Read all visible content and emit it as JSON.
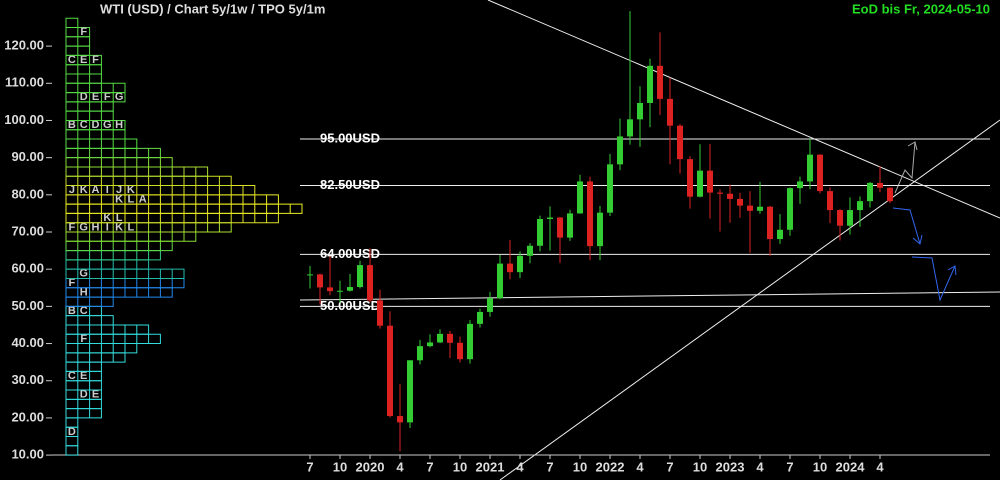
{
  "chart_data": {
    "type": "candlestick",
    "title": "WTI (USD) /  Chart 5y/1w / TPO 5y/1m",
    "subtitle": "EoD bis Fr, 2024-05-10",
    "up_color": "#33cc33",
    "down_color": "#dd2222",
    "x": [
      "2019-07",
      "2019-08",
      "2019-09",
      "2019-10",
      "2019-11",
      "2019-12",
      "2020-01",
      "2020-02",
      "2020-03",
      "2020-04",
      "2020-05",
      "2020-06",
      "2020-07",
      "2020-08",
      "2020-09",
      "2020-10",
      "2020-11",
      "2020-12",
      "2021-01",
      "2021-02",
      "2021-03",
      "2021-04",
      "2021-05",
      "2021-06",
      "2021-07",
      "2021-08",
      "2021-09",
      "2021-10",
      "2021-11",
      "2021-12",
      "2022-01",
      "2022-02",
      "2022-03",
      "2022-04",
      "2022-05",
      "2022-06",
      "2022-07",
      "2022-08",
      "2022-09",
      "2022-10",
      "2022-11",
      "2022-12",
      "2023-01",
      "2023-02",
      "2023-03",
      "2023-04",
      "2023-05",
      "2023-06",
      "2023-07",
      "2023-08",
      "2023-09",
      "2023-10",
      "2023-11",
      "2023-12",
      "2024-01",
      "2024-02",
      "2024-03",
      "2024-04",
      "2024-05"
    ],
    "open": [
      58.5,
      58.6,
      55.1,
      54.1,
      54.2,
      55.2,
      61.1,
      51.6,
      44.8,
      20.5,
      18.8,
      35.5,
      39.3,
      40.3,
      42.6,
      40.2,
      35.8,
      45.3,
      48.5,
      52.2,
      61.5,
      59.2,
      63.6,
      66.3,
      73.5,
      73.9,
      68.5,
      75.0,
      83.6,
      66.2,
      75.2,
      88.2,
      95.7,
      100.3,
      104.7,
      114.7,
      105.8,
      98.6,
      89.6,
      79.5,
      86.5,
      80.6,
      80.3,
      78.9,
      77.1,
      75.7,
      76.8,
      68.1,
      70.6,
      81.8,
      83.6,
      90.8,
      81.0,
      75.9,
      71.7,
      75.9,
      78.3,
      83.2,
      81.9
    ],
    "high": [
      60.9,
      58.8,
      63.4,
      56.9,
      58.7,
      62.3,
      65.6,
      54.5,
      48.7,
      29.1,
      35.5,
      41.0,
      42.5,
      43.8,
      43.4,
      41.9,
      46.3,
      49.4,
      53.9,
      63.8,
      67.9,
      64.8,
      67.0,
      74.4,
      76.9,
      74.0,
      76.0,
      85.4,
      84.9,
      77.0,
      91.0,
      100.5,
      129.4,
      109.2,
      116.6,
      123.7,
      111.5,
      99.0,
      90.4,
      93.6,
      93.7,
      81.5,
      82.7,
      80.6,
      81.0,
      83.5,
      77.0,
      74.8,
      82.0,
      84.9,
      95.0,
      90.9,
      82.0,
      76.2,
      79.3,
      79.6,
      83.5,
      87.7,
      82.0
    ],
    "low": [
      54.8,
      50.5,
      53.0,
      50.9,
      54.0,
      54.8,
      51.1,
      44.0,
      20.1,
      11.0,
      17.3,
      34.4,
      39.0,
      40.1,
      36.1,
      34.9,
      34.6,
      44.3,
      47.2,
      51.9,
      57.3,
      57.6,
      61.6,
      64.8,
      65.0,
      61.7,
      67.6,
      74.9,
      62.4,
      62.4,
      74.3,
      86.6,
      93.5,
      92.9,
      98.2,
      101.5,
      88.2,
      85.7,
      76.3,
      79.3,
      73.6,
      70.1,
      72.5,
      73.8,
      64.4,
      74.9,
      63.6,
      66.8,
      69.0,
      77.6,
      81.5,
      80.4,
      72.4,
      67.7,
      69.3,
      71.4,
      76.6,
      80.7,
      77.8
    ],
    "close": [
      58.6,
      55.1,
      54.1,
      54.2,
      55.2,
      61.1,
      51.6,
      44.8,
      20.5,
      18.8,
      35.5,
      39.3,
      40.3,
      42.6,
      40.2,
      35.8,
      45.3,
      48.5,
      52.2,
      61.5,
      59.2,
      63.6,
      66.3,
      73.5,
      73.9,
      68.5,
      75.0,
      83.6,
      66.2,
      75.2,
      88.2,
      95.7,
      100.3,
      104.7,
      114.7,
      105.8,
      98.6,
      89.6,
      79.5,
      86.5,
      80.6,
      80.3,
      78.9,
      77.1,
      75.7,
      76.8,
      68.1,
      70.6,
      81.8,
      83.6,
      90.8,
      81.0,
      75.9,
      71.7,
      75.9,
      78.3,
      83.2,
      81.9,
      78.3
    ],
    "xlim": [
      "2019-06",
      "2025-03"
    ],
    "xticks": [
      {
        "value": "2019-07",
        "label": "7"
      },
      {
        "value": "2019-10",
        "label": "10"
      },
      {
        "value": "2020-01",
        "label": "2020"
      },
      {
        "value": "2020-04",
        "label": "4"
      },
      {
        "value": "2020-07",
        "label": "7"
      },
      {
        "value": "2020-10",
        "label": "10"
      },
      {
        "value": "2021-01",
        "label": "2021"
      },
      {
        "value": "2021-04",
        "label": "4"
      },
      {
        "value": "2021-07",
        "label": "7"
      },
      {
        "value": "2021-10",
        "label": "10"
      },
      {
        "value": "2022-01",
        "label": "2022"
      },
      {
        "value": "2022-04",
        "label": "4"
      },
      {
        "value": "2022-07",
        "label": "7"
      },
      {
        "value": "2022-10",
        "label": "10"
      },
      {
        "value": "2023-01",
        "label": "2023"
      },
      {
        "value": "2023-04",
        "label": "4"
      },
      {
        "value": "2023-07",
        "label": "7"
      },
      {
        "value": "2023-10",
        "label": "10"
      },
      {
        "value": "2024-01",
        "label": "2024"
      },
      {
        "value": "2024-04",
        "label": "4"
      }
    ],
    "ylim": [
      3.3,
      132.4
    ],
    "yticks": [
      {
        "value": 10,
        "label": "10.00"
      },
      {
        "value": 20,
        "label": "20.00"
      },
      {
        "value": 30,
        "label": "30.00"
      },
      {
        "value": 40,
        "label": "40.00"
      },
      {
        "value": 50,
        "label": "50.00"
      },
      {
        "value": 60,
        "label": "60.00"
      },
      {
        "value": 70,
        "label": "70.00"
      },
      {
        "value": 80,
        "label": "80.00"
      },
      {
        "value": 90,
        "label": "90.00"
      },
      {
        "value": 100,
        "label": "100.00"
      },
      {
        "value": 110,
        "label": "110.00"
      },
      {
        "value": 120,
        "label": "120.00"
      }
    ],
    "levels": [
      {
        "value": 95,
        "label": "95.00USD"
      },
      {
        "value": 82.5,
        "label": "82.50USD"
      },
      {
        "value": 64,
        "label": "64.00USD"
      },
      {
        "value": 50,
        "label": "50.00USD"
      }
    ],
    "tpo": {
      "bin": 2.5,
      "rows": [
        {
          "price": 10,
          "count": 1,
          "color": "#33dddd"
        },
        {
          "price": 12.5,
          "count": 1,
          "color": "#33dddd"
        },
        {
          "price": 15,
          "count": 1,
          "color": "#33dddd",
          "letters": [
            "D"
          ]
        },
        {
          "price": 17.5,
          "count": 1,
          "color": "#33dddd"
        },
        {
          "price": 20,
          "count": 3,
          "color": "#33dddd"
        },
        {
          "price": 22.5,
          "count": 3,
          "color": "#33dddd"
        },
        {
          "price": 25,
          "count": 3,
          "color": "#33dddd",
          "letters": [
            null,
            "D",
            "E"
          ]
        },
        {
          "price": 27.5,
          "count": 3,
          "color": "#33dddd"
        },
        {
          "price": 30,
          "count": 3,
          "color": "#33dddd",
          "letters": [
            "C",
            "E"
          ]
        },
        {
          "price": 32.5,
          "count": 3,
          "color": "#33dddd"
        },
        {
          "price": 35,
          "count": 5,
          "color": "#33dddd"
        },
        {
          "price": 37.5,
          "count": 6,
          "color": "#33dddd"
        },
        {
          "price": 40,
          "count": 8,
          "color": "#33dddd",
          "letters": [
            null,
            "F"
          ]
        },
        {
          "price": 42.5,
          "count": 7,
          "color": "#33dddd"
        },
        {
          "price": 45,
          "count": 4,
          "color": "#33dddd"
        },
        {
          "price": 47.5,
          "count": 3,
          "color": "#33dddd",
          "letters": [
            "B",
            "C"
          ]
        },
        {
          "price": 50,
          "count": 4,
          "color": "#2288ee"
        },
        {
          "price": 52.5,
          "count": 9,
          "color": "#2288ee",
          "letters": [
            null,
            "H"
          ]
        },
        {
          "price": 55,
          "count": 10,
          "color": "#2288ee",
          "letters": [
            "F"
          ]
        },
        {
          "price": 57.5,
          "count": 10,
          "color": "#22bbaa",
          "letters": [
            null,
            "G"
          ]
        },
        {
          "price": 60,
          "count": 7,
          "color": "#22bbaa"
        },
        {
          "price": 62.5,
          "count": 8,
          "color": "#33cc88"
        },
        {
          "price": 65,
          "count": 9,
          "color": "#66dd44"
        },
        {
          "price": 67.5,
          "count": 11,
          "color": "#88dd33"
        },
        {
          "price": 70,
          "count": 14,
          "color": "#aae033",
          "letters": [
            "F",
            "G",
            "H",
            "I",
            "K",
            "L"
          ]
        },
        {
          "price": 72.5,
          "count": 18,
          "color": "#dde022",
          "letters": [
            null,
            null,
            null,
            "K",
            "L"
          ]
        },
        {
          "price": 75,
          "count": 20,
          "color": "#eeee22"
        },
        {
          "price": 77.5,
          "count": 18,
          "color": "#eeee22",
          "letters": [
            null,
            null,
            null,
            null,
            "K",
            "L",
            "A"
          ]
        },
        {
          "price": 80,
          "count": 16,
          "color": "#dde022",
          "letters": [
            "J",
            "K",
            "A",
            "I",
            "J",
            "K"
          ]
        },
        {
          "price": 82.5,
          "count": 14,
          "color": "#ccdd22"
        },
        {
          "price": 85,
          "count": 12,
          "color": "#aadd33"
        },
        {
          "price": 87.5,
          "count": 9,
          "color": "#88dd33"
        },
        {
          "price": 90,
          "count": 8,
          "color": "#66dd44"
        },
        {
          "price": 92.5,
          "count": 6,
          "color": "#55dd44"
        },
        {
          "price": 95,
          "count": 5,
          "color": "#55dd44"
        },
        {
          "price": 97.5,
          "count": 5,
          "color": "#55dd44",
          "letters": [
            "B",
            "C",
            "D",
            "G",
            "H"
          ]
        },
        {
          "price": 100,
          "count": 4,
          "color": "#55dd44"
        },
        {
          "price": 102.5,
          "count": 4,
          "color": "#55dd44"
        },
        {
          "price": 105,
          "count": 5,
          "color": "#55dd44",
          "letters": [
            null,
            "D",
            "E",
            "F",
            "G"
          ]
        },
        {
          "price": 107.5,
          "count": 5,
          "color": "#55dd44"
        },
        {
          "price": 110,
          "count": 3,
          "color": "#55dd44"
        },
        {
          "price": 112.5,
          "count": 3,
          "color": "#55dd44"
        },
        {
          "price": 115,
          "count": 3,
          "color": "#55dd44",
          "letters": [
            "C",
            "E",
            "F"
          ]
        },
        {
          "price": 117.5,
          "count": 2,
          "color": "#55dd44"
        },
        {
          "price": 120,
          "count": 2,
          "color": "#55dd44"
        },
        {
          "price": 122.5,
          "count": 2,
          "color": "#55dd44",
          "letters": [
            null,
            "F"
          ]
        },
        {
          "price": 125,
          "count": 1,
          "color": "#55dd44"
        }
      ]
    }
  }
}
